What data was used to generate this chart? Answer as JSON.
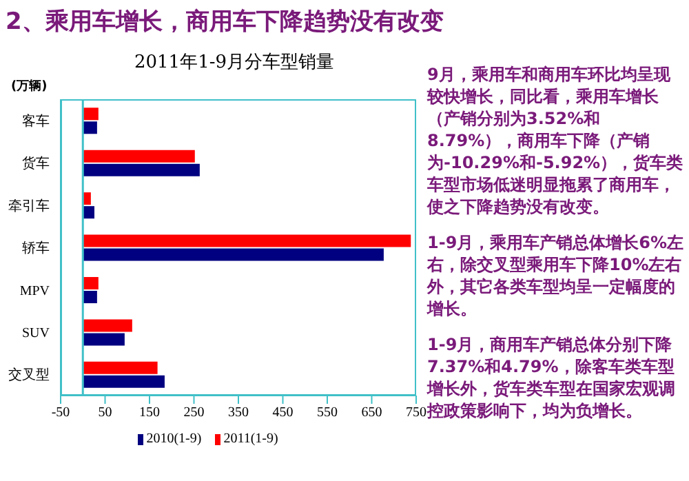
{
  "chart_data": {
    "type": "bar",
    "orientation": "horizontal",
    "title": "2、乘用车增长，商用车下降趋势没有改变",
    "subtitle": "2011年1-9月分车型销量",
    "ylabel": "(万辆)",
    "categories": [
      "客车",
      "货车",
      "牵引车",
      "轿车",
      "MPV",
      "SUV",
      "交叉型"
    ],
    "series": [
      {
        "name": "2010(1-9)",
        "color": "#000080",
        "values": [
          32,
          263,
          26,
          677,
          32,
          94,
          184
        ]
      },
      {
        "name": "2011(1-9)",
        "color": "#ff0000",
        "values": [
          35,
          252,
          18,
          738,
          35,
          111,
          168
        ]
      }
    ],
    "xlim": [
      -50,
      750
    ],
    "xticks": [
      -50,
      50,
      150,
      250,
      350,
      450,
      550,
      650,
      750
    ],
    "ref_lines": [
      {
        "axis": "x",
        "value": 0,
        "color": "#40c0c8"
      }
    ],
    "grid": false,
    "legend": "bottom",
    "annotations": [
      "9月，乘用车和商用车环比均呈现较快增长，同比看，乘用车增长（产销分别为3.52%和8.79%），商用车下降（产销为-10.29%和-5.92%），货车类车型市场低迷明显拖累了商用车，使之下降趋势没有改变。",
      "1-9月，乘用车产销总体增长6%左右，除交叉型乘用车下降10%左右外，其它各类车型均呈一定幅度的增长。",
      "1-9月，商用车产销总体分别下降7.37%和4.79%，除客车类车型增长外，货车类车型在国家宏观调控政策影响下，均为负增长。"
    ]
  }
}
